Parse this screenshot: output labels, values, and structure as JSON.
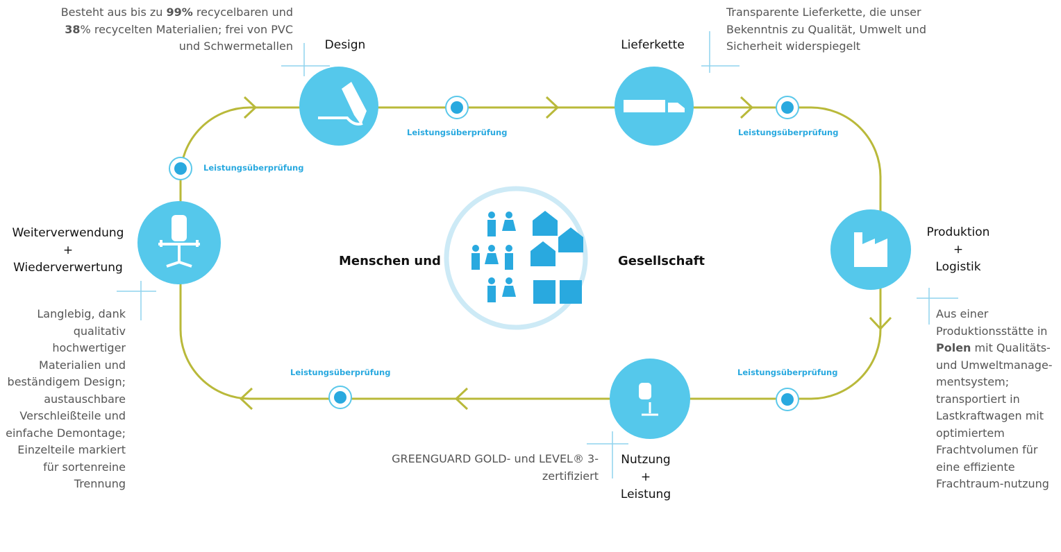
{
  "stages": [
    {
      "title": [
        "Design"
      ],
      "description": [
        {
          "text": "Besteht aus bis zu "
        },
        {
          "text": "99%",
          "bold": true
        },
        {
          "text": " recycelbaren und "
        },
        {
          "text": "38",
          "bold": true
        },
        {
          "text": "% recycelten Materialien; frei von PVC und Schwermetallen"
        }
      ]
    },
    {
      "title": [
        "Lieferkette"
      ],
      "description": [
        {
          "text": "Transparente Lieferkette, die unser Bekenntnis zu Qualität, Umwelt und Sicherheit widerspiegelt"
        }
      ]
    },
    {
      "title": [
        "Produktion",
        "+",
        "Logistik"
      ],
      "description": [
        {
          "text": "Aus einer Produktionsstätte in "
        },
        {
          "text": "Polen",
          "bold": true
        },
        {
          "text": " mit Qualitäts- und Umweltmanage-mentsystem; transportiert in Lastkraftwagen mit optimiertem Frachtvolumen für eine effiziente Frachtraum-nutzung"
        }
      ]
    },
    {
      "title": [
        "Nutzung",
        "+",
        "Leistung"
      ],
      "description": [
        {
          "text": "GREENGUARD GOLD- und LEVEL® 3-zertifiziert"
        }
      ]
    },
    {
      "title": [
        "Weiterverwendung",
        "+",
        "Wiederverwertung"
      ],
      "description": [
        {
          "text": "Langlebig, dank qualitativ hochwertiger Materialien und beständigem Design; austauschbare Verschleißteile und einfache Demontage; Einzelteile markiert für sortenreine Trennung"
        }
      ]
    }
  ],
  "checks": [
    "Leistungsüberprüfung",
    "Leistungsüberprüfung",
    "Leistungsüberprüfung",
    "Leistungsüberprüfung",
    "Leistungsüberprüfung"
  ],
  "center": {
    "left": "Menschen und",
    "right": "Gesellschaft"
  }
}
